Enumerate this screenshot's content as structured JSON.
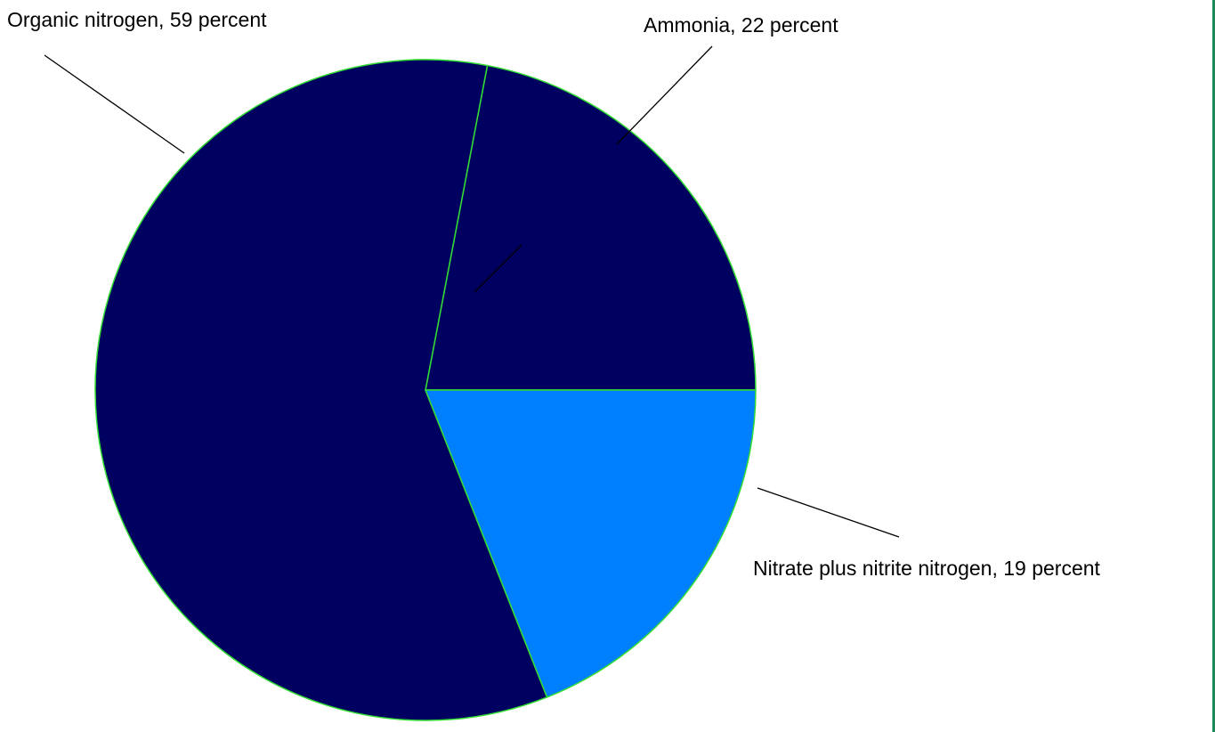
{
  "chart_data": {
    "type": "pie",
    "slices": [
      {
        "name": "Organic nitrogen",
        "value": 59,
        "label": "Organic nitrogen, 59 percent",
        "color": "#000060"
      },
      {
        "name": "Ammonia",
        "value": 22,
        "label": "Ammonia, 22 percent",
        "color": "#000060"
      },
      {
        "name": "Nitrate plus nitrite nitrogen",
        "value": 19,
        "label": "Nitrate plus nitrite nitrogen, 19 percent",
        "color": "#0080ff"
      }
    ],
    "slice_outline_color": "#33dd33",
    "edge_color": "#1a8a5a"
  }
}
